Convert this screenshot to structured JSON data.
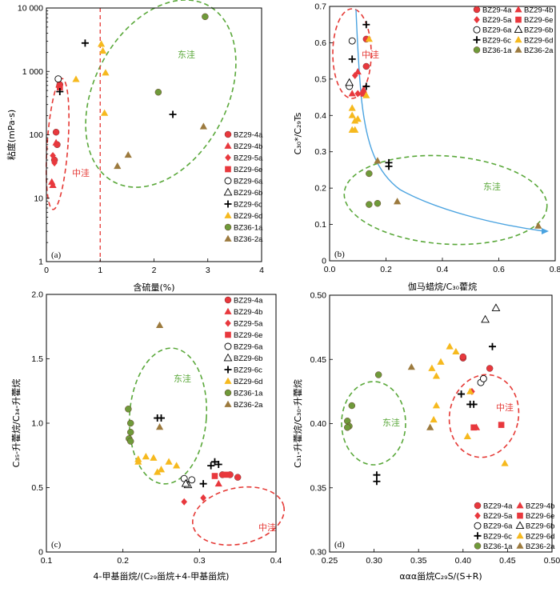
{
  "colors": {
    "red": "#e8383d",
    "green": "#6f9a3a",
    "tan": "#9c7a3e",
    "yellow": "#f6b91e",
    "black": "#000000",
    "red_dash": "#e53935",
    "green_dash": "#5aa83a",
    "fit_curve": "#4aa3e0"
  },
  "chart_data": [
    {
      "type": "scatter",
      "panel": "(a)",
      "xlabel": "含硫量(%)",
      "ylabel": "粘度(mPa·s)",
      "xlim": [
        0,
        4
      ],
      "ylim": [
        1,
        10000
      ],
      "yscale": "log",
      "xticks": [
        "0",
        "1",
        "2",
        "3",
        "4"
      ],
      "yticks": [
        "1",
        "10",
        "100",
        "1 000",
        "10 000"
      ],
      "divider_x": 1,
      "regions": [
        {
          "label": "中洼",
          "color": "red"
        },
        {
          "label": "东洼",
          "color": "green"
        }
      ],
      "series": [
        {
          "name": "BZ29-4a",
          "points": [
            [
              0.18,
              110
            ],
            [
              0.2,
              70
            ],
            [
              0.25,
              620
            ],
            [
              0.15,
              40
            ]
          ]
        },
        {
          "name": "BZ29-4b",
          "points": [
            [
              0.18,
              75
            ],
            [
              0.1,
              18
            ],
            [
              0.12,
              16
            ]
          ]
        },
        {
          "name": "BZ29-5a",
          "points": [
            [
              0.12,
              47
            ],
            [
              0.15,
              36
            ],
            [
              0.25,
              600
            ]
          ]
        },
        {
          "name": "BZ29-6e",
          "points": [
            [
              0.25,
              560
            ]
          ]
        },
        {
          "name": "BZ29-6a",
          "points": [
            [
              0.22,
              760
            ]
          ]
        },
        {
          "name": "BZ29-6b",
          "points": []
        },
        {
          "name": "BZ29-6c",
          "points": [
            [
              0.72,
              2800
            ],
            [
              0.25,
              480
            ],
            [
              2.35,
              210
            ]
          ]
        },
        {
          "name": "BZ29-6d",
          "points": [
            [
              0.55,
              750
            ],
            [
              1.02,
              2700
            ],
            [
              1.05,
              2100
            ],
            [
              1.1,
              950
            ],
            [
              1.08,
              220
            ]
          ]
        },
        {
          "name": "BZ36-1a",
          "points": [
            [
              2.08,
              470
            ],
            [
              2.95,
              7300
            ]
          ]
        },
        {
          "name": "BZ36-2a",
          "points": [
            [
              1.52,
              48
            ],
            [
              1.32,
              32
            ],
            [
              2.92,
              135
            ]
          ]
        }
      ]
    },
    {
      "type": "scatter",
      "panel": "(b)",
      "xlabel": "伽马蜡烷/C₃₀藿烷",
      "ylabel": "C₃₀*/C₂₉Ts",
      "xlim": [
        0,
        0.8
      ],
      "ylim": [
        0,
        0.7
      ],
      "xticks": [
        "0.0",
        "0.2",
        "0.4",
        "0.6",
        "0.8"
      ],
      "yticks": [
        "0",
        "0.1",
        "0.2",
        "0.3",
        "0.4",
        "0.5",
        "0.6",
        "0.7"
      ],
      "regions": [
        {
          "label": "中洼",
          "color": "red"
        },
        {
          "label": "东洼",
          "color": "green"
        }
      ],
      "series": [
        {
          "name": "BZ29-4a",
          "points": [
            [
              0.13,
              0.61
            ],
            [
              0.13,
              0.535
            ]
          ]
        },
        {
          "name": "BZ29-4b",
          "points": [
            [
              0.08,
              0.46
            ],
            [
              0.12,
              0.47
            ],
            [
              0.1,
              0.52
            ]
          ]
        },
        {
          "name": "BZ29-5a",
          "points": [
            [
              0.09,
              0.51
            ],
            [
              0.1,
              0.46
            ]
          ]
        },
        {
          "name": "BZ29-6e",
          "points": [
            [
              0.12,
              0.46
            ]
          ]
        },
        {
          "name": "BZ29-6a",
          "points": [
            [
              0.08,
              0.605
            ],
            [
              0.07,
              0.48
            ]
          ]
        },
        {
          "name": "BZ29-6b",
          "points": [
            [
              0.07,
              0.49
            ]
          ]
        },
        {
          "name": "BZ29-6c",
          "points": [
            [
              0.13,
              0.65
            ],
            [
              0.08,
              0.555
            ],
            [
              0.13,
              0.48
            ],
            [
              0.21,
              0.26
            ],
            [
              0.21,
              0.27
            ]
          ]
        },
        {
          "name": "BZ29-6d",
          "points": [
            [
              0.08,
              0.42
            ],
            [
              0.08,
              0.4
            ],
            [
              0.09,
              0.36
            ],
            [
              0.09,
              0.385
            ],
            [
              0.1,
              0.39
            ],
            [
              0.08,
              0.36
            ],
            [
              0.14,
              0.61
            ],
            [
              0.13,
              0.455
            ]
          ]
        },
        {
          "name": "BZ36-1a",
          "points": [
            [
              0.14,
              0.24
            ],
            [
              0.14,
              0.155
            ],
            [
              0.17,
              0.158
            ]
          ]
        },
        {
          "name": "BZ36-2a",
          "points": [
            [
              0.17,
              0.275
            ],
            [
              0.24,
              0.163
            ],
            [
              0.74,
              0.096
            ]
          ]
        }
      ]
    },
    {
      "type": "scatter",
      "panel": "(c)",
      "xlabel": "4-甲基甾烷/(C₂₉甾烷+4-甲基甾烷)",
      "ylabel": "C₃₅-升藿烷/C₃₄-升藿烷",
      "xlim": [
        0.1,
        0.4
      ],
      "ylim": [
        0,
        2.0
      ],
      "xticks": [
        "0.1",
        "0.2",
        "0.3",
        "0.4"
      ],
      "yticks": [
        "0",
        "0.5",
        "1.0",
        "1.5",
        "2.0"
      ],
      "regions": [
        {
          "label": "东洼",
          "color": "green"
        },
        {
          "label": "中洼",
          "color": "red"
        }
      ],
      "series": [
        {
          "name": "BZ29-4a",
          "points": [
            [
              0.33,
              0.6
            ],
            [
              0.34,
              0.6
            ],
            [
              0.35,
              0.58
            ]
          ]
        },
        {
          "name": "BZ29-4b",
          "points": [
            [
              0.325,
              0.53
            ]
          ]
        },
        {
          "name": "BZ29-5a",
          "points": [
            [
              0.28,
              0.39
            ],
            [
              0.305,
              0.42
            ]
          ]
        },
        {
          "name": "BZ29-6e",
          "points": [
            [
              0.335,
              0.6
            ],
            [
              0.32,
              0.59
            ]
          ]
        },
        {
          "name": "BZ29-6a",
          "points": [
            [
              0.28,
              0.57
            ],
            [
              0.29,
              0.56
            ]
          ]
        },
        {
          "name": "BZ29-6b",
          "points": [
            [
              0.285,
              0.52
            ],
            [
              0.282,
              0.53
            ]
          ]
        },
        {
          "name": "BZ29-6c",
          "points": [
            [
              0.25,
              1.04
            ],
            [
              0.245,
              1.04
            ],
            [
              0.315,
              0.67
            ],
            [
              0.32,
              0.7
            ],
            [
              0.325,
              0.68
            ],
            [
              0.305,
              0.53
            ]
          ]
        },
        {
          "name": "BZ29-6d",
          "points": [
            [
              0.22,
              0.72
            ],
            [
              0.23,
              0.74
            ],
            [
              0.24,
              0.73
            ],
            [
              0.26,
              0.7
            ],
            [
              0.27,
              0.67
            ],
            [
              0.25,
              0.64
            ],
            [
              0.245,
              0.62
            ],
            [
              0.22,
              0.7
            ]
          ]
        },
        {
          "name": "BZ36-1a",
          "points": [
            [
              0.207,
              1.11
            ],
            [
              0.21,
              1.0
            ],
            [
              0.21,
              0.93
            ],
            [
              0.208,
              0.88
            ],
            [
              0.21,
              0.86
            ]
          ]
        },
        {
          "name": "BZ36-2a",
          "points": [
            [
              0.248,
              1.76
            ],
            [
              0.248,
              0.97
            ]
          ]
        }
      ]
    },
    {
      "type": "scatter",
      "panel": "(d)",
      "xlabel": "ααα甾烷C₂₉S/(S+R)",
      "ylabel": "C₃₁-升藿烷/C₃₀-升藿烷",
      "xlim": [
        0.25,
        0.5
      ],
      "ylim": [
        0.3,
        0.5
      ],
      "xticks": [
        "0.25",
        "0.30",
        "0.35",
        "0.40",
        "0.45",
        "0.50"
      ],
      "yticks": [
        "0.30",
        "0.35",
        "0.40",
        "0.45",
        "0.50"
      ],
      "legend_position": "bottom-right",
      "regions": [
        {
          "label": "东洼",
          "color": "green"
        },
        {
          "label": "中洼",
          "color": "red"
        }
      ],
      "series": [
        {
          "name": "BZ29-4a",
          "points": [
            [
              0.4,
              0.451
            ],
            [
              0.43,
              0.443
            ],
            [
              0.4,
              0.452
            ]
          ]
        },
        {
          "name": "BZ29-4b",
          "points": [
            [
              0.415,
              0.397
            ]
          ]
        },
        {
          "name": "BZ29-5a",
          "points": [
            [
              0.41,
              0.425
            ]
          ]
        },
        {
          "name": "BZ29-6e",
          "points": [
            [
              0.412,
              0.397
            ],
            [
              0.443,
              0.399
            ]
          ]
        },
        {
          "name": "BZ29-6a",
          "points": [
            [
              0.42,
              0.432
            ],
            [
              0.423,
              0.435
            ]
          ]
        },
        {
          "name": "BZ29-6b",
          "points": [
            [
              0.425,
              0.481
            ],
            [
              0.437,
              0.49
            ]
          ]
        },
        {
          "name": "BZ29-6c",
          "points": [
            [
              0.433,
              0.46
            ],
            [
              0.398,
              0.423
            ],
            [
              0.408,
              0.415
            ],
            [
              0.412,
              0.415
            ],
            [
              0.303,
              0.355
            ],
            [
              0.303,
              0.36
            ]
          ]
        },
        {
          "name": "BZ29-6d",
          "points": [
            [
              0.385,
              0.46
            ],
            [
              0.392,
              0.456
            ],
            [
              0.37,
              0.437
            ],
            [
              0.375,
              0.448
            ],
            [
              0.37,
              0.414
            ],
            [
              0.367,
              0.403
            ],
            [
              0.408,
              0.425
            ],
            [
              0.405,
              0.39
            ],
            [
              0.447,
              0.369
            ],
            [
              0.365,
              0.443
            ]
          ]
        },
        {
          "name": "BZ36-1a",
          "points": [
            [
              0.275,
              0.414
            ],
            [
              0.27,
              0.402
            ],
            [
              0.272,
              0.398
            ],
            [
              0.305,
              0.438
            ],
            [
              0.27,
              0.397
            ]
          ]
        },
        {
          "name": "BZ36-2a",
          "points": [
            [
              0.342,
              0.444
            ],
            [
              0.363,
              0.397
            ]
          ]
        }
      ]
    }
  ],
  "series_style": {
    "BZ29-4a": {
      "shape": "circle",
      "color": "red"
    },
    "BZ29-4b": {
      "shape": "triangle",
      "color": "red"
    },
    "BZ29-5a": {
      "shape": "diamond",
      "color": "red"
    },
    "BZ29-6e": {
      "shape": "square",
      "color": "red"
    },
    "BZ29-6a": {
      "shape": "circle-open",
      "color": "black"
    },
    "BZ29-6b": {
      "shape": "triangle-open",
      "color": "black"
    },
    "BZ29-6c": {
      "shape": "plus",
      "color": "black"
    },
    "BZ29-6d": {
      "shape": "triangle",
      "color": "yellow"
    },
    "BZ36-1a": {
      "shape": "circle",
      "color": "green"
    },
    "BZ36-2a": {
      "shape": "triangle",
      "color": "tan"
    }
  }
}
